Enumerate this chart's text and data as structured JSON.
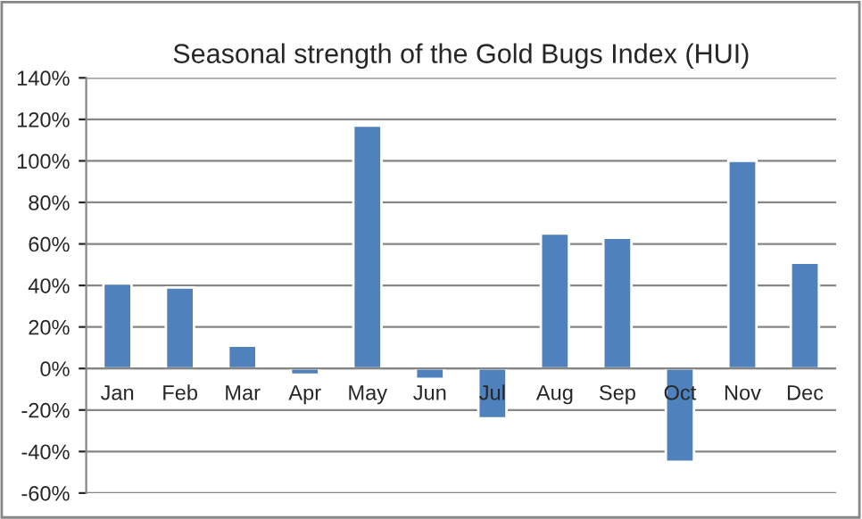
{
  "chart_data": {
    "type": "bar",
    "title": "Seasonal strength of the Gold Bugs Index (HUI)",
    "categories": [
      "Jan",
      "Feb",
      "Mar",
      "Apr",
      "May",
      "Jun",
      "Jul",
      "Aug",
      "Sep",
      "Oct",
      "Nov",
      "Dec"
    ],
    "values": [
      41,
      39,
      11,
      -3,
      117,
      -5,
      -24,
      65,
      63,
      -45,
      100,
      51
    ],
    "color": "#4f81bd",
    "ylim": [
      -60,
      140
    ],
    "yticks": [
      {
        "value": -60,
        "label": "-60%"
      },
      {
        "value": -40,
        "label": "-40%"
      },
      {
        "value": -20,
        "label": "-20%"
      },
      {
        "value": 0,
        "label": "0%"
      },
      {
        "value": 20,
        "label": "20%"
      },
      {
        "value": 40,
        "label": "40%"
      },
      {
        "value": 60,
        "label": "60%"
      },
      {
        "value": 80,
        "label": "80%"
      },
      {
        "value": 100,
        "label": "100%"
      },
      {
        "value": 120,
        "label": "120%"
      },
      {
        "value": 140,
        "label": "140%"
      }
    ],
    "grid": "y"
  }
}
